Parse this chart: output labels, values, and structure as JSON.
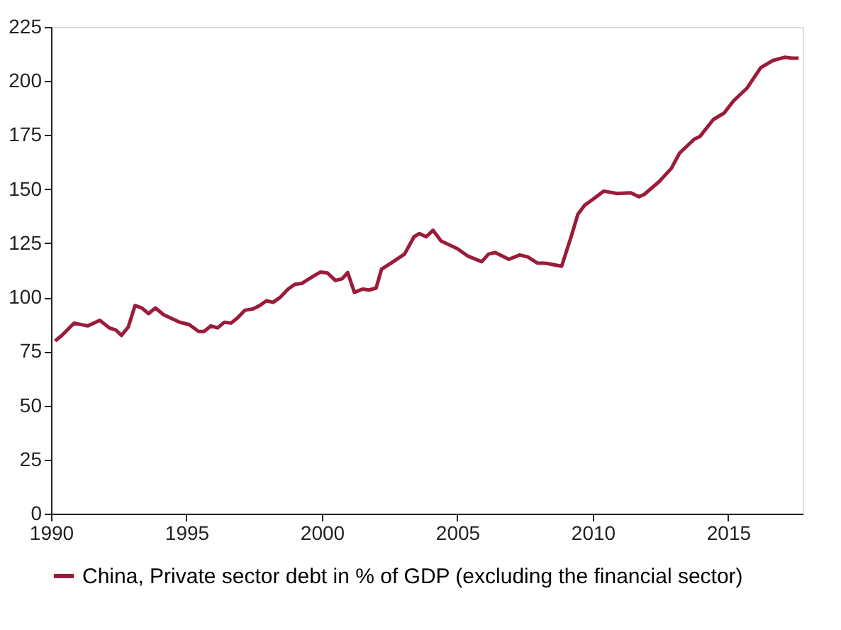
{
  "chart_data": {
    "type": "line",
    "x": [
      1990.15,
      1990.4,
      1990.85,
      1991.35,
      1991.8,
      1992.15,
      1992.4,
      1992.6,
      1992.85,
      1993.1,
      1993.35,
      1993.6,
      1993.85,
      1994.15,
      1994.75,
      1995.1,
      1995.45,
      1995.65,
      1995.9,
      1996.15,
      1996.4,
      1996.65,
      1996.9,
      1997.15,
      1997.45,
      1997.7,
      1997.95,
      1998.2,
      1998.45,
      1998.75,
      1999.0,
      1999.25,
      1999.7,
      1999.95,
      2000.2,
      2000.5,
      2000.75,
      2000.95,
      2001.2,
      2001.5,
      2001.75,
      2002.0,
      2002.2,
      2002.55,
      2003.05,
      2003.4,
      2003.6,
      2003.85,
      2004.1,
      2004.4,
      2005.0,
      2005.4,
      2005.9,
      2006.15,
      2006.4,
      2006.9,
      2007.3,
      2007.6,
      2007.95,
      2008.3,
      2008.85,
      2009.2,
      2009.45,
      2009.7,
      2009.95,
      2010.4,
      2010.9,
      2011.4,
      2011.7,
      2011.9,
      2012.45,
      2012.9,
      2013.2,
      2013.75,
      2013.95,
      2014.45,
      2014.85,
      2015.2,
      2015.7,
      2016.2,
      2016.65,
      2017.1,
      2017.35,
      2017.6
    ],
    "series": [
      {
        "name": "China, Private sector debt in % of GDP (excluding the financial sector)",
        "color": "#9b1b3a",
        "values": [
          79.8,
          82.4,
          88.1,
          86.8,
          89.4,
          85.9,
          84.8,
          82.4,
          86.3,
          96.2,
          95.1,
          92.5,
          95.1,
          92,
          88.5,
          87.4,
          84.2,
          84.2,
          86.8,
          85.9,
          88.5,
          88.1,
          90.7,
          94,
          94.6,
          96.2,
          98.4,
          97.7,
          99.9,
          103.8,
          106,
          106.4,
          109.9,
          111.7,
          111.3,
          107.8,
          108.6,
          111.5,
          102.3,
          103.8,
          103.4,
          104.3,
          113,
          115.8,
          120,
          128,
          129.5,
          128,
          131,
          126,
          122.5,
          119,
          116.5,
          120,
          120.7,
          117.6,
          119.6,
          118.7,
          115.9,
          115.7,
          114.4,
          128,
          138.4,
          142.6,
          144.8,
          149.1,
          148,
          148.3,
          146.5,
          147.6,
          153.5,
          159.6,
          166.6,
          173.2,
          174.3,
          182.2,
          185.2,
          190.9,
          196.8,
          206.2,
          209.5,
          211,
          210.6,
          210.6
        ]
      }
    ],
    "xlim": [
      1990,
      2017.75
    ],
    "xticks": [
      1990,
      1995,
      2000,
      2005,
      2010,
      2015
    ],
    "ylim": [
      0,
      225
    ],
    "yticks": [
      0,
      25,
      50,
      75,
      100,
      125,
      150,
      175,
      200,
      225
    ],
    "grid": false,
    "legend": "bottom",
    "marker": "none",
    "line_style": "solid"
  }
}
